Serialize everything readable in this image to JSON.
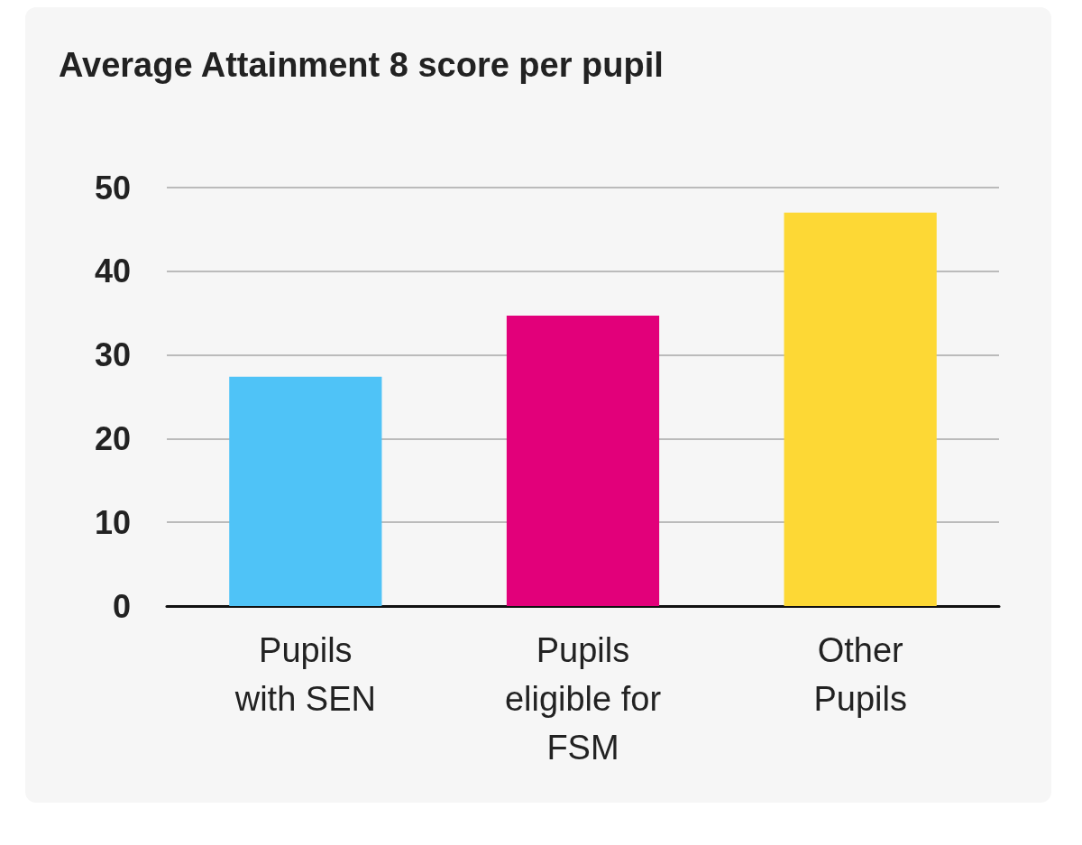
{
  "chart_data": {
    "type": "bar",
    "title": "Average Attainment 8 score per pupil",
    "categories": [
      "Pupils\nwith SEN",
      "Pupils\neligible for\nFSM",
      "Other\nPupils"
    ],
    "values": [
      27.4,
      34.7,
      47.0
    ],
    "colors": [
      "#4fc3f7",
      "#e2007a",
      "#fdd835"
    ],
    "ylim": [
      0,
      50
    ],
    "yticks": [
      0,
      10,
      20,
      30,
      40,
      50
    ],
    "grid": "y"
  }
}
